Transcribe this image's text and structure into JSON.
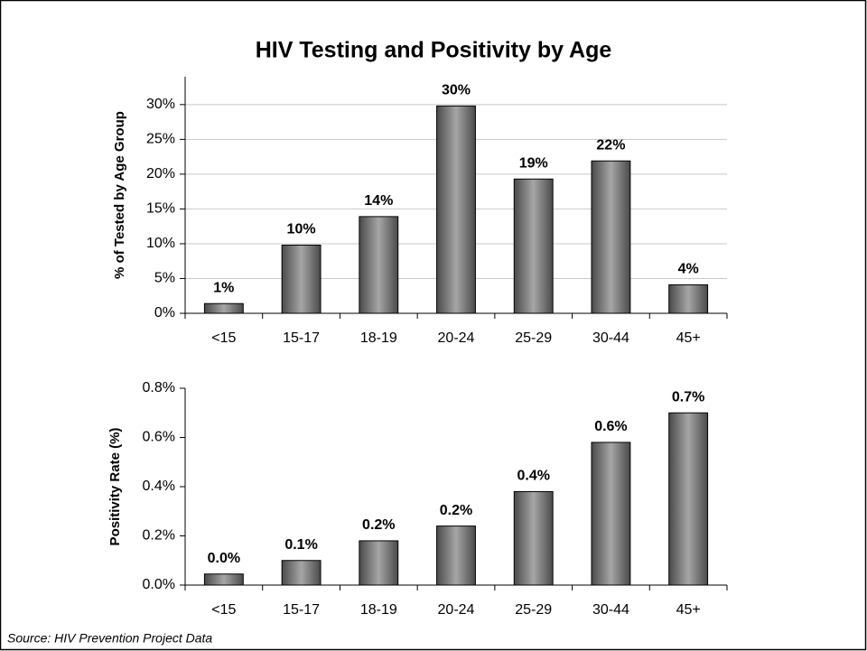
{
  "title": "HIV Testing and Positivity by Age",
  "source": "Source: HIV Prevention Project Data",
  "chart_data": [
    {
      "type": "bar",
      "ylabel": "% of Tested by Age Group",
      "categories": [
        "<15",
        "15-17",
        "18-19",
        "20-24",
        "25-29",
        "30-44",
        "45+"
      ],
      "values": [
        1.4,
        9.8,
        13.9,
        29.8,
        19.3,
        21.9,
        4.1
      ],
      "value_labels": [
        "1%",
        "10%",
        "14%",
        "30%",
        "19%",
        "22%",
        "4%"
      ],
      "color": "#a6a6a6",
      "ylim": [
        0,
        34
      ],
      "yticks": [
        {
          "value": 0,
          "label": "0%"
        },
        {
          "value": 5,
          "label": "5%"
        },
        {
          "value": 10,
          "label": "10%"
        },
        {
          "value": 15,
          "label": "15%"
        },
        {
          "value": 20,
          "label": "20%"
        },
        {
          "value": 25,
          "label": "25%"
        },
        {
          "value": 30,
          "label": "30%"
        }
      ],
      "grid": true
    },
    {
      "type": "bar",
      "ylabel": "Positivity Rate (%)",
      "categories": [
        "<15",
        "15-17",
        "18-19",
        "20-24",
        "25-29",
        "30-44",
        "45+"
      ],
      "values": [
        0.045,
        0.1,
        0.18,
        0.24,
        0.38,
        0.58,
        0.7
      ],
      "value_labels": [
        "0.0%",
        "0.1%",
        "0.2%",
        "0.2%",
        "0.4%",
        "0.6%",
        "0.7%"
      ],
      "color": "#a6a6a6",
      "ylim": [
        0,
        0.8
      ],
      "yticks": [
        {
          "value": 0,
          "label": "0.0%"
        },
        {
          "value": 0.2,
          "label": "0.2%"
        },
        {
          "value": 0.4,
          "label": "0.4%"
        },
        {
          "value": 0.6,
          "label": "0.6%"
        },
        {
          "value": 0.8,
          "label": "0.8%"
        }
      ],
      "grid": false
    }
  ]
}
